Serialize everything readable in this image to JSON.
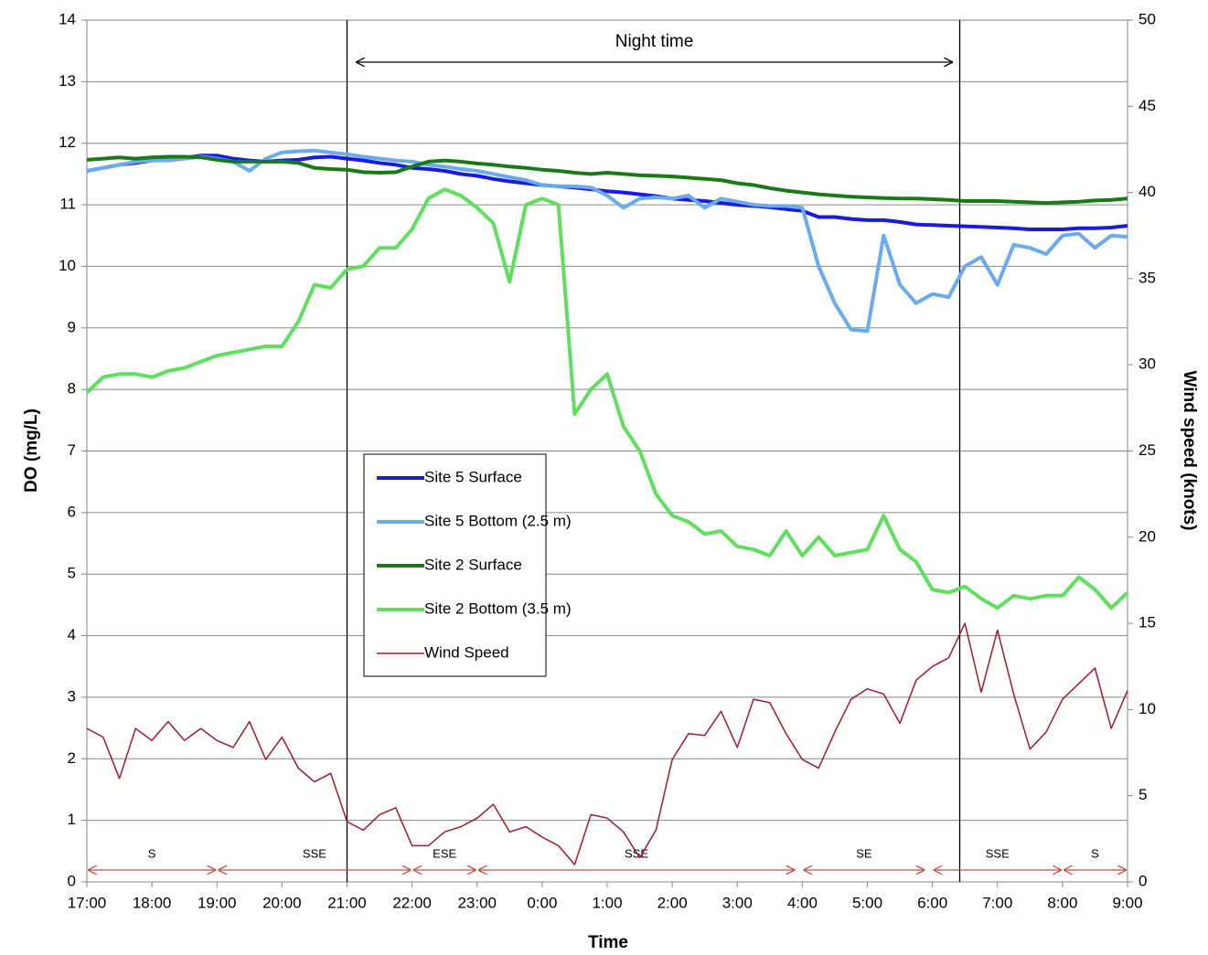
{
  "chart_data": {
    "type": "line",
    "x_label": "Time",
    "y_label": "DO (mg/L)",
    "y2_label": "Wind speed (knots)",
    "x": [
      17,
      17.25,
      17.5,
      17.75,
      18,
      18.25,
      18.5,
      18.75,
      19,
      19.25,
      19.5,
      19.75,
      20,
      20.25,
      20.5,
      20.75,
      21,
      21.25,
      21.5,
      21.75,
      22,
      22.25,
      22.5,
      22.75,
      23,
      23.25,
      23.5,
      23.75,
      24,
      24.25,
      24.5,
      24.75,
      25,
      25.25,
      25.5,
      25.75,
      26,
      26.25,
      26.5,
      26.75,
      27,
      27.25,
      27.5,
      27.75,
      28,
      28.25,
      28.5,
      28.75,
      29,
      29.25,
      29.5,
      29.75,
      30,
      30.25,
      30.5,
      30.75,
      31,
      31.25,
      31.5,
      31.75,
      32,
      32.25,
      32.5,
      32.75,
      33
    ],
    "xlim": [
      17,
      33
    ],
    "xticks": [
      {
        "value": 17,
        "label": "17:00"
      },
      {
        "value": 18,
        "label": "18:00"
      },
      {
        "value": 19,
        "label": "19:00"
      },
      {
        "value": 20,
        "label": "20:00"
      },
      {
        "value": 21,
        "label": "21:00"
      },
      {
        "value": 22,
        "label": "22:00"
      },
      {
        "value": 23,
        "label": "23:00"
      },
      {
        "value": 24,
        "label": "0:00"
      },
      {
        "value": 25,
        "label": "1:00"
      },
      {
        "value": 26,
        "label": "2:00"
      },
      {
        "value": 27,
        "label": "3:00"
      },
      {
        "value": 28,
        "label": "4:00"
      },
      {
        "value": 29,
        "label": "5:00"
      },
      {
        "value": 30,
        "label": "6:00"
      },
      {
        "value": 31,
        "label": "7:00"
      },
      {
        "value": 32,
        "label": "8:00"
      },
      {
        "value": 33,
        "label": "9:00"
      }
    ],
    "ylim": [
      0,
      14
    ],
    "yticks": [
      0,
      1,
      2,
      3,
      4,
      5,
      6,
      7,
      8,
      9,
      10,
      11,
      12,
      13,
      14
    ],
    "y2lim": [
      0,
      50
    ],
    "y2ticks": [
      0,
      5,
      10,
      15,
      20,
      25,
      30,
      35,
      40,
      45,
      50
    ],
    "grid": true,
    "legend": "center-left",
    "series": [
      {
        "name": "Site 5 Surface",
        "color": "#1a1ae6",
        "line_width": 4,
        "values": [
          11.55,
          11.6,
          11.65,
          11.68,
          11.72,
          11.74,
          11.76,
          11.8,
          11.8,
          11.75,
          11.72,
          11.7,
          11.72,
          11.73,
          11.77,
          11.78,
          11.75,
          11.72,
          11.68,
          11.65,
          11.6,
          11.58,
          11.55,
          11.5,
          11.47,
          11.42,
          11.38,
          11.35,
          11.32,
          11.3,
          11.28,
          11.25,
          11.22,
          11.2,
          11.17,
          11.14,
          11.1,
          11.08,
          11.06,
          11.03,
          11.0,
          10.98,
          10.96,
          10.93,
          10.9,
          10.8,
          10.8,
          10.77,
          10.75,
          10.75,
          10.72,
          10.68,
          10.67,
          10.66,
          10.65,
          10.64,
          10.63,
          10.62,
          10.6,
          10.6,
          10.6,
          10.62,
          10.62,
          10.63,
          10.66
        ]
      },
      {
        "name": "Site 5 Bottom (2.5 m)",
        "color": "#6aaaf0",
        "line_width": 4,
        "values": [
          11.55,
          11.6,
          11.65,
          11.7,
          11.72,
          11.72,
          11.75,
          11.78,
          11.75,
          11.7,
          11.55,
          11.75,
          11.85,
          11.87,
          11.88,
          11.85,
          11.82,
          11.78,
          11.75,
          11.72,
          11.7,
          11.65,
          11.62,
          11.58,
          11.55,
          11.5,
          11.45,
          11.4,
          11.32,
          11.3,
          11.3,
          11.28,
          11.15,
          10.95,
          11.1,
          11.12,
          11.1,
          11.15,
          10.95,
          11.1,
          11.05,
          11.0,
          10.98,
          10.98,
          10.95,
          10.0,
          9.4,
          8.97,
          8.95,
          10.5,
          9.7,
          9.4,
          9.55,
          9.5,
          10.0,
          10.15,
          9.7,
          10.35,
          10.3,
          10.2,
          10.5,
          10.53,
          10.3,
          10.5,
          10.48
        ]
      },
      {
        "name": "Site 2 Surface",
        "color": "#1a7a1a",
        "line_width": 4,
        "values": [
          11.73,
          11.75,
          11.77,
          11.75,
          11.77,
          11.78,
          11.78,
          11.77,
          11.73,
          11.7,
          11.7,
          11.7,
          11.7,
          11.68,
          11.6,
          11.58,
          11.57,
          11.53,
          11.52,
          11.53,
          11.62,
          11.7,
          11.72,
          11.7,
          11.67,
          11.65,
          11.62,
          11.6,
          11.57,
          11.55,
          11.52,
          11.5,
          11.52,
          11.5,
          11.48,
          11.47,
          11.46,
          11.44,
          11.42,
          11.4,
          11.35,
          11.32,
          11.27,
          11.23,
          11.2,
          11.17,
          11.15,
          11.13,
          11.12,
          11.11,
          11.1,
          11.1,
          11.09,
          11.08,
          11.06,
          11.06,
          11.06,
          11.05,
          11.04,
          11.03,
          11.04,
          11.05,
          11.07,
          11.08,
          11.1
        ]
      },
      {
        "name": "Site 2 Bottom (3.5 m)",
        "color": "#5ee05e",
        "line_width": 4,
        "values": [
          7.95,
          8.2,
          8.25,
          8.25,
          8.2,
          8.3,
          8.35,
          8.45,
          8.55,
          8.6,
          8.65,
          8.7,
          8.7,
          9.1,
          9.7,
          9.65,
          9.95,
          10.0,
          10.3,
          10.3,
          10.6,
          11.1,
          11.25,
          11.15,
          10.95,
          10.7,
          9.75,
          11.0,
          11.1,
          11.0,
          7.6,
          8.0,
          8.25,
          7.4,
          7.0,
          6.3,
          5.95,
          5.85,
          5.65,
          5.7,
          5.45,
          5.4,
          5.3,
          5.7,
          5.3,
          5.6,
          5.3,
          5.35,
          5.4,
          5.95,
          5.4,
          5.2,
          4.75,
          4.7,
          4.8,
          4.6,
          4.45,
          4.65,
          4.6,
          4.65,
          4.65,
          4.95,
          4.75,
          4.45,
          4.7
        ]
      },
      {
        "name": "Wind Speed",
        "color": "#a0192d",
        "line_width": 1.5,
        "axis": "y2",
        "values": [
          8.9,
          8.4,
          6.0,
          8.9,
          8.2,
          9.3,
          8.2,
          8.9,
          8.2,
          7.8,
          9.3,
          7.1,
          8.4,
          6.6,
          5.8,
          6.3,
          3.5,
          3.0,
          3.9,
          4.3,
          2.1,
          2.1,
          2.9,
          3.2,
          3.7,
          4.5,
          2.9,
          3.2,
          2.6,
          2.1,
          1.0,
          3.9,
          3.7,
          2.9,
          1.4,
          3.0,
          7.1,
          8.6,
          8.5,
          9.9,
          7.8,
          10.6,
          10.4,
          8.6,
          7.1,
          6.6,
          8.7,
          10.6,
          11.2,
          10.9,
          9.2,
          11.7,
          12.5,
          13.0,
          15.0,
          11.0,
          14.6,
          10.9,
          7.7,
          8.7,
          10.6,
          11.5,
          12.4,
          8.9,
          11.1
        ]
      }
    ],
    "vlines": [
      21,
      30.42
    ],
    "night_time": {
      "text": "Night time",
      "start": 21.15,
      "end": 30.3
    },
    "wind_directions": [
      {
        "label": "S",
        "start": 17,
        "end": 19
      },
      {
        "label": "SSE",
        "start": 19,
        "end": 22
      },
      {
        "label": "ESE",
        "start": 22,
        "end": 23
      },
      {
        "label": "SSE",
        "start": 23,
        "end": 27.9
      },
      {
        "label": "SE",
        "start": 28,
        "end": 29.9
      },
      {
        "label": "SSE",
        "start": 30,
        "end": 32
      },
      {
        "label": "S",
        "start": 32,
        "end": 33
      }
    ]
  }
}
